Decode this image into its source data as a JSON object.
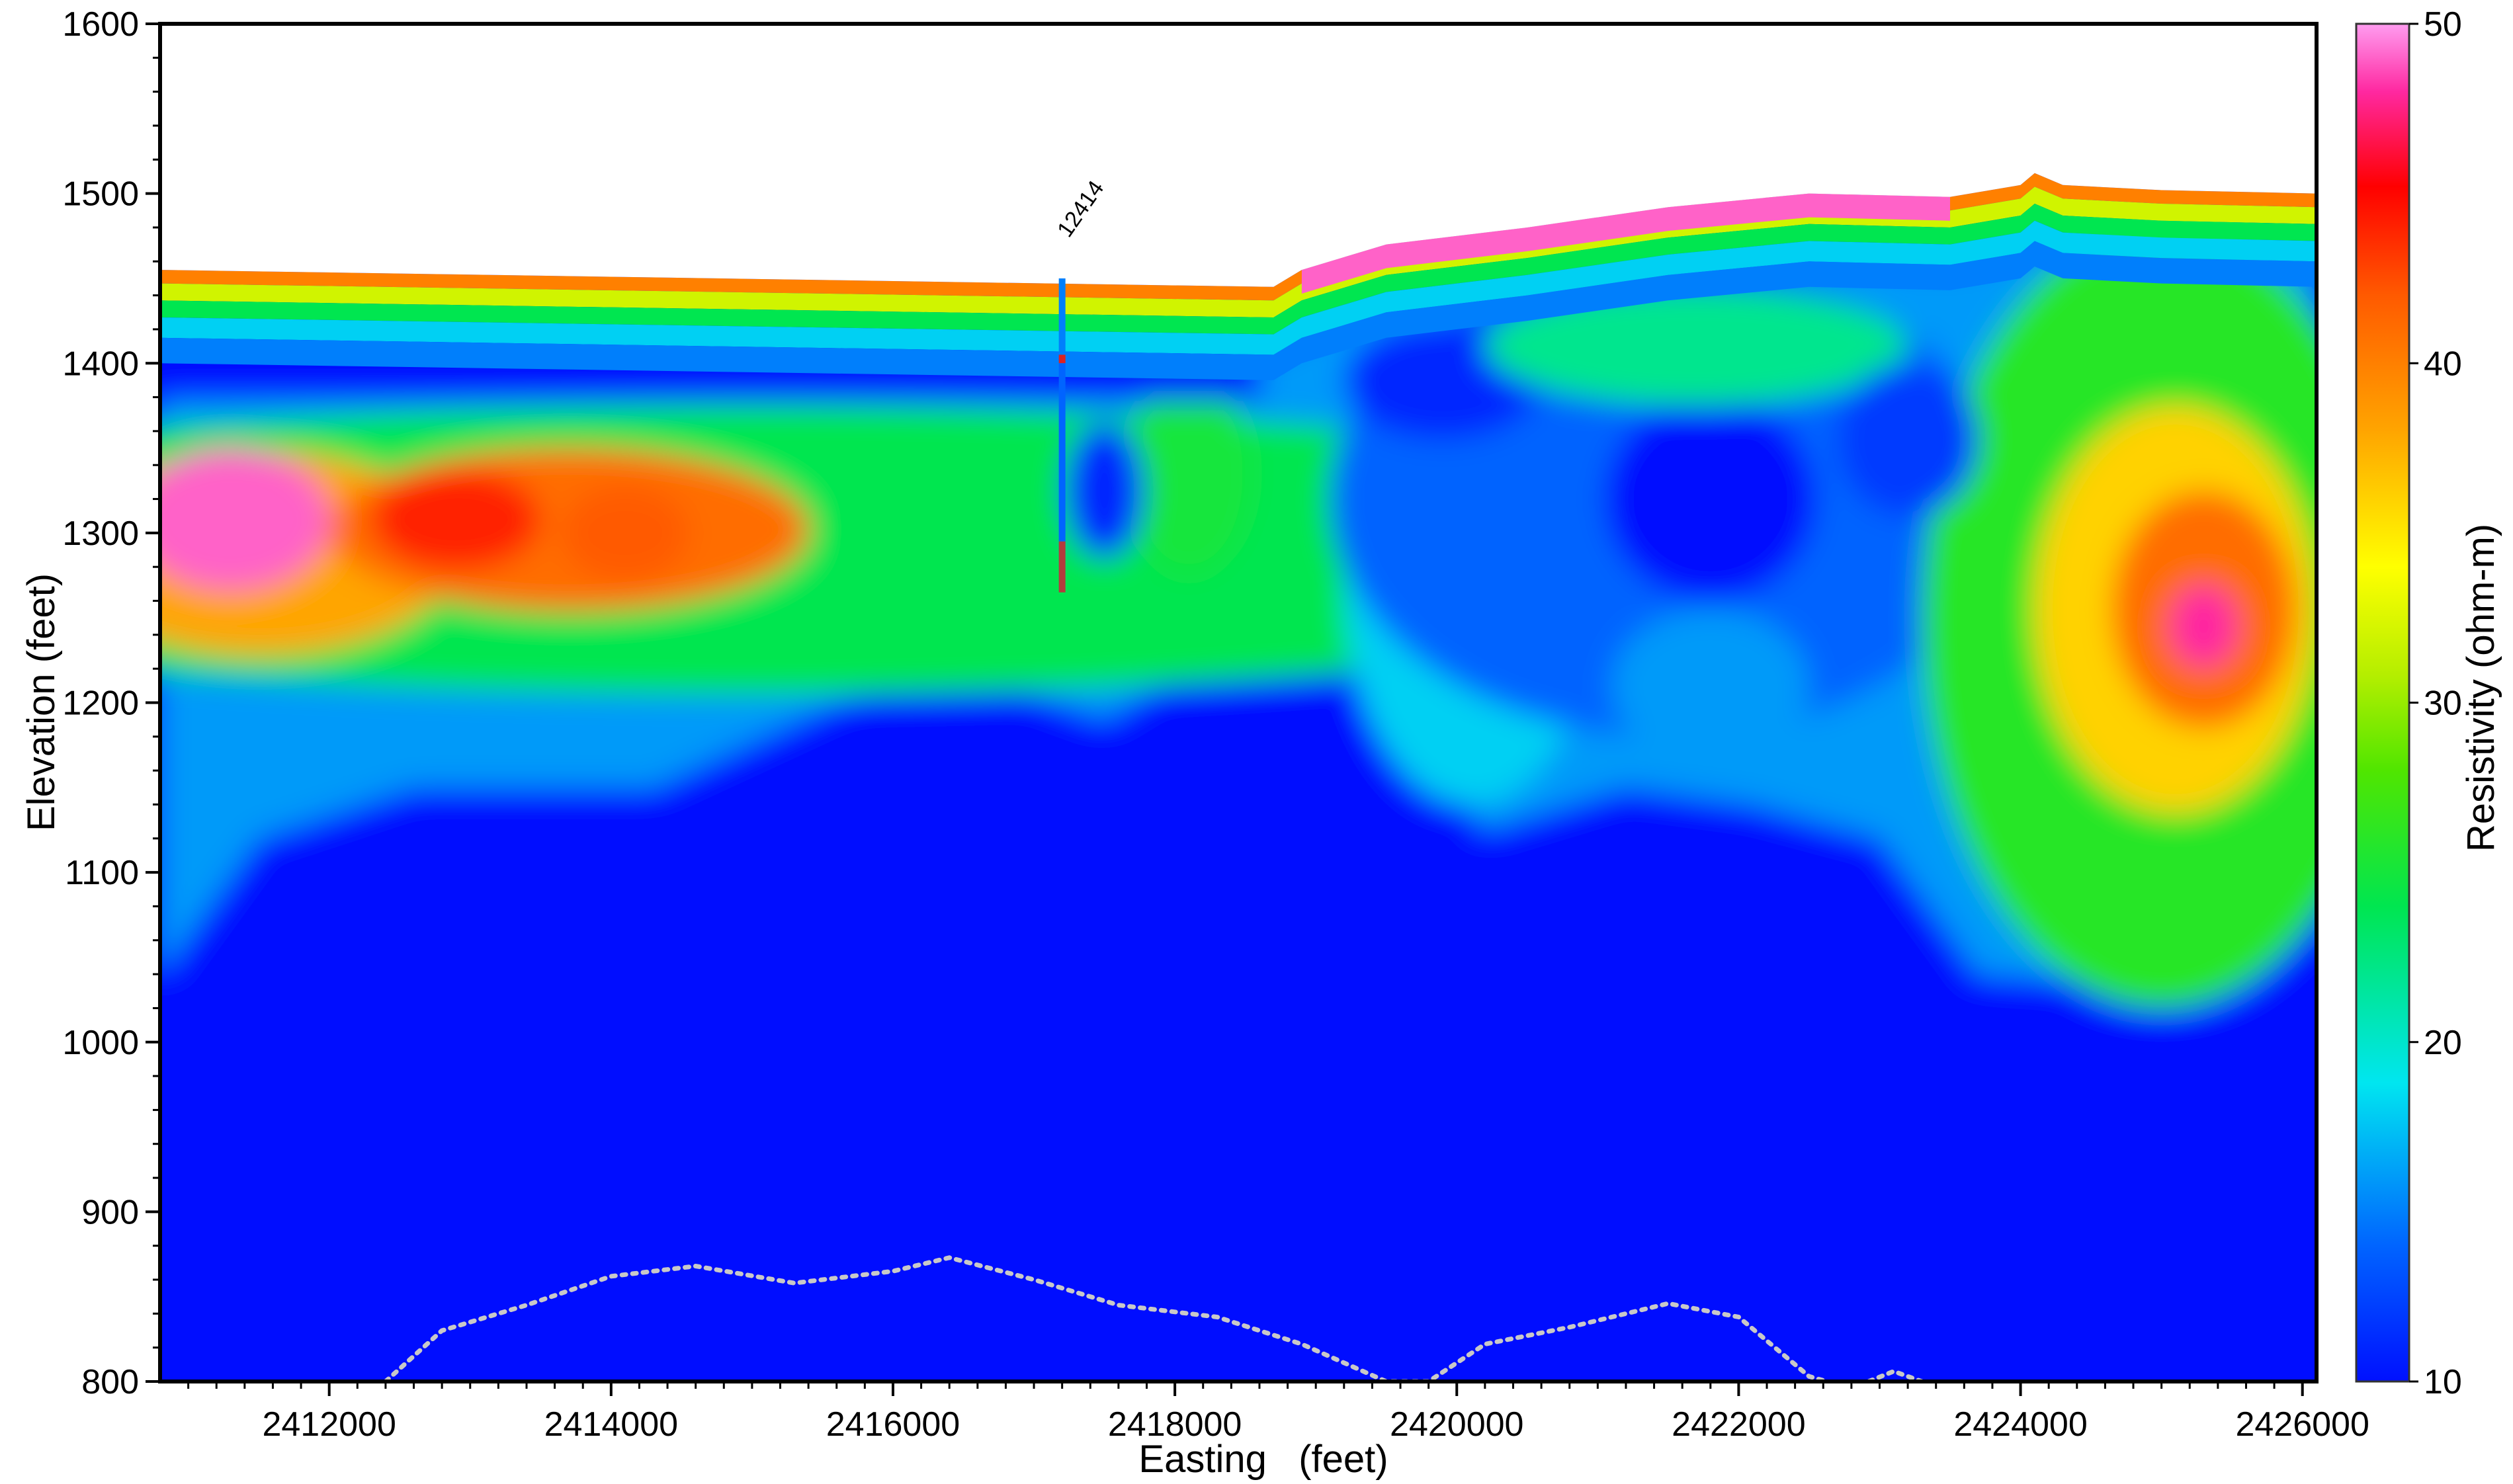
{
  "chart_data": {
    "type": "heatmap",
    "title": "",
    "xlabel": "Easting   (feet)",
    "ylabel": "Elevation (feet)",
    "xlim": [
      2410800,
      2426100
    ],
    "ylim": [
      800,
      1600
    ],
    "x_ticks": [
      "2412000",
      "2414000",
      "2416000",
      "2418000",
      "2420000",
      "2422000",
      "2424000",
      "2426000"
    ],
    "x_tick_values": [
      2412000,
      2414000,
      2416000,
      2418000,
      2420000,
      2422000,
      2424000,
      2426000
    ],
    "y_ticks": [
      "800",
      "900",
      "1000",
      "1100",
      "1200",
      "1300",
      "1400",
      "1500",
      "1600"
    ],
    "y_tick_values": [
      800,
      900,
      1000,
      1100,
      1200,
      1300,
      1400,
      1500,
      1600
    ],
    "colorbar": {
      "label": "Resistivity (ohm-m)",
      "range": [
        10,
        50
      ],
      "ticks": [
        "10",
        "20",
        "30",
        "40",
        "50"
      ],
      "tick_values": [
        10,
        20,
        30,
        40,
        50
      ]
    },
    "surface_profile": {
      "x": [
        2410800,
        2418700,
        2418900,
        2419500,
        2420500,
        2421500,
        2422500,
        2423500,
        2424000,
        2424100,
        2424300,
        2425000,
        2426100
      ],
      "y": [
        1455,
        1445,
        1455,
        1470,
        1480,
        1492,
        1500,
        1498,
        1505,
        1512,
        1505,
        1502,
        1500
      ]
    },
    "borehole": {
      "label": "12414",
      "x": 2417200,
      "y_top": 1450,
      "y_bottom": 1265
    },
    "dotted_line": {
      "x": [
        2412400,
        2412800,
        2413400,
        2414000,
        2414600,
        2415300,
        2416000,
        2416400,
        2417000,
        2417600,
        2418300,
        2418900,
        2419500,
        2419800,
        2420200,
        2420800,
        2421500,
        2422000,
        2422500,
        2422800,
        2423100,
        2423300
      ],
      "y": [
        800,
        830,
        845,
        862,
        868,
        858,
        865,
        873,
        860,
        845,
        838,
        822,
        800,
        800,
        822,
        832,
        846,
        838,
        803,
        796,
        806,
        800
      ]
    },
    "resistivity_bodies": [
      {
        "cx": 2415000,
        "cy": 1290,
        "rx": 8000,
        "ry": 85,
        "value": 24
      },
      {
        "cx": 2411500,
        "cy": 1288,
        "rx": 1400,
        "ry": 60,
        "value": 38
      },
      {
        "cx": 2411300,
        "cy": 1308,
        "rx": 700,
        "ry": 42,
        "value": 49
      },
      {
        "cx": 2413700,
        "cy": 1302,
        "rx": 1700,
        "ry": 48,
        "value": 41
      },
      {
        "cx": 2412900,
        "cy": 1308,
        "rx": 600,
        "ry": 30,
        "value": 44
      },
      {
        "cx": 2414100,
        "cy": 1300,
        "rx": 450,
        "ry": 28,
        "value": 42
      },
      {
        "cx": 2418100,
        "cy": 1335,
        "rx": 450,
        "ry": 60,
        "value": 25
      },
      {
        "cx": 2420100,
        "cy": 1270,
        "rx": 900,
        "ry": 130,
        "value": 18
      },
      {
        "cx": 2421500,
        "cy": 1320,
        "rx": 2400,
        "ry": 140,
        "value": 14
      },
      {
        "cx": 2421800,
        "cy": 1320,
        "rx": 750,
        "ry": 60,
        "value": 10
      },
      {
        "cx": 2419900,
        "cy": 1390,
        "rx": 700,
        "ry": 35,
        "value": 11
      },
      {
        "cx": 2421700,
        "cy": 1410,
        "rx": 1500,
        "ry": 35,
        "value": 22
      },
      {
        "cx": 2425000,
        "cy": 1250,
        "rx": 1700,
        "ry": 230,
        "value": 26
      },
      {
        "cx": 2425100,
        "cy": 1255,
        "rx": 1000,
        "ry": 120,
        "value": 36
      },
      {
        "cx": 2425300,
        "cy": 1255,
        "rx": 650,
        "ry": 70,
        "value": 41
      },
      {
        "cx": 2425300,
        "cy": 1245,
        "rx": 250,
        "ry": 25,
        "value": 48
      },
      {
        "cx": 2417500,
        "cy": 1325,
        "rx": 280,
        "ry": 40,
        "value": 11
      },
      {
        "cx": 2421800,
        "cy": 1210,
        "rx": 700,
        "ry": 45,
        "value": 16
      },
      {
        "cx": 2423200,
        "cy": 1355,
        "rx": 500,
        "ry": 45,
        "value": 12
      }
    ]
  }
}
